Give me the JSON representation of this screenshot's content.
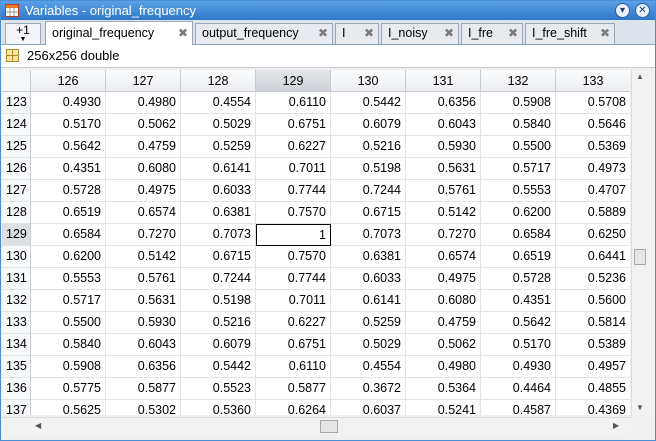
{
  "window": {
    "title": "Variables - original_frequency"
  },
  "tabs": {
    "plus_label": "+1",
    "items": [
      {
        "label": "original_frequency",
        "active": true
      },
      {
        "label": "output_frequency"
      },
      {
        "label": "I"
      },
      {
        "label": "I_noisy"
      },
      {
        "label": "I_fre"
      },
      {
        "label": "I_fre_shift"
      }
    ]
  },
  "variable_info": {
    "text": "256x256 double"
  },
  "grid": {
    "columns": [
      "126",
      "127",
      "128",
      "129",
      "130",
      "131",
      "132",
      "133"
    ],
    "selected_column": "129",
    "selected_row": "129",
    "rows": [
      {
        "row": "123",
        "cells": [
          "0.4930",
          "0.4980",
          "0.4554",
          "0.6110",
          "0.5442",
          "0.6356",
          "0.5908",
          "0.5708"
        ]
      },
      {
        "row": "124",
        "cells": [
          "0.5170",
          "0.5062",
          "0.5029",
          "0.6751",
          "0.6079",
          "0.6043",
          "0.5840",
          "0.5646"
        ]
      },
      {
        "row": "125",
        "cells": [
          "0.5642",
          "0.4759",
          "0.5259",
          "0.6227",
          "0.5216",
          "0.5930",
          "0.5500",
          "0.5369"
        ]
      },
      {
        "row": "126",
        "cells": [
          "0.4351",
          "0.6080",
          "0.6141",
          "0.7011",
          "0.5198",
          "0.5631",
          "0.5717",
          "0.4973"
        ]
      },
      {
        "row": "127",
        "cells": [
          "0.5728",
          "0.4975",
          "0.6033",
          "0.7744",
          "0.7244",
          "0.5761",
          "0.5553",
          "0.4707"
        ]
      },
      {
        "row": "128",
        "cells": [
          "0.6519",
          "0.6574",
          "0.6381",
          "0.7570",
          "0.6715",
          "0.5142",
          "0.6200",
          "0.5889"
        ]
      },
      {
        "row": "129",
        "cells": [
          "0.6584",
          "0.7270",
          "0.7073",
          "1",
          "0.7073",
          "0.7270",
          "0.6584",
          "0.6250"
        ]
      },
      {
        "row": "130",
        "cells": [
          "0.6200",
          "0.5142",
          "0.6715",
          "0.7570",
          "0.6381",
          "0.6574",
          "0.6519",
          "0.6441"
        ]
      },
      {
        "row": "131",
        "cells": [
          "0.5553",
          "0.5761",
          "0.7244",
          "0.7744",
          "0.6033",
          "0.4975",
          "0.5728",
          "0.5236"
        ]
      },
      {
        "row": "132",
        "cells": [
          "0.5717",
          "0.5631",
          "0.5198",
          "0.7011",
          "0.6141",
          "0.6080",
          "0.4351",
          "0.5600"
        ]
      },
      {
        "row": "133",
        "cells": [
          "0.5500",
          "0.5930",
          "0.5216",
          "0.6227",
          "0.5259",
          "0.4759",
          "0.5642",
          "0.5814"
        ]
      },
      {
        "row": "134",
        "cells": [
          "0.5840",
          "0.6043",
          "0.6079",
          "0.6751",
          "0.5029",
          "0.5062",
          "0.5170",
          "0.5389"
        ]
      },
      {
        "row": "135",
        "cells": [
          "0.5908",
          "0.6356",
          "0.5442",
          "0.6110",
          "0.4554",
          "0.4980",
          "0.4930",
          "0.4957"
        ]
      },
      {
        "row": "136",
        "cells": [
          "0.5775",
          "0.5877",
          "0.5523",
          "0.5877",
          "0.3672",
          "0.5364",
          "0.4464",
          "0.4855"
        ]
      },
      {
        "row": "137",
        "cells": [
          "0.5625",
          "0.5302",
          "0.5360",
          "0.6264",
          "0.6037",
          "0.5241",
          "0.4587",
          "0.4369"
        ]
      }
    ]
  },
  "colors": {
    "titlebar": "#2f78c8",
    "selected_header": "#cfd3d8"
  },
  "icons": {
    "app": "variables-app-icon",
    "tab_close": "close-icon",
    "variable": "matrix-grid-icon"
  }
}
